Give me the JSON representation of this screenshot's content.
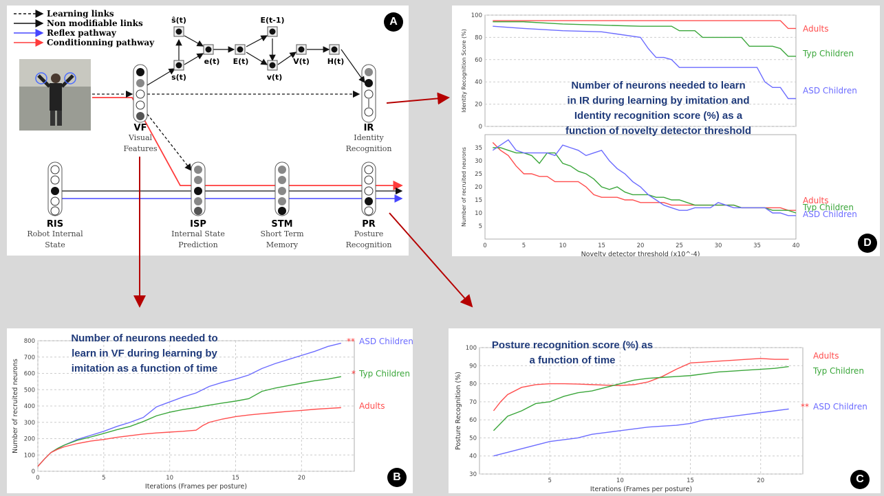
{
  "panels": {
    "a": {
      "badge": "A",
      "legend": [
        "Learning links",
        "Non modifiable links",
        "Reflex pathway",
        "Conditionning pathway"
      ],
      "nodes": [
        "ŝ(t)",
        "s(t)",
        "e(t)",
        "E(t)",
        "E(t-1)",
        "v(t)",
        "V(t)",
        "H(t)"
      ],
      "groups": [
        {
          "abbr": "VF",
          "name_lines": [
            "Visual",
            "Features"
          ]
        },
        {
          "abbr": "IR",
          "name_lines": [
            "Identity",
            "Recognition"
          ]
        },
        {
          "abbr": "RIS",
          "name_lines": [
            "Robot Internal",
            "State"
          ]
        },
        {
          "abbr": "ISP",
          "name_lines": [
            "Internal State",
            "Prediction"
          ]
        },
        {
          "abbr": "STM",
          "name_lines": [
            "Short Term",
            "Memory"
          ]
        },
        {
          "abbr": "PR",
          "name_lines": [
            "Posture",
            "Recognition"
          ]
        }
      ]
    },
    "b": {
      "badge": "B",
      "title_lines": [
        "Number of neurons needed to",
        "learn in VF during learning by",
        "imitation as a function of time"
      ]
    },
    "c": {
      "badge": "C",
      "title_lines": [
        "Posture recognition score (%) as",
        "a function of time"
      ]
    },
    "d": {
      "badge": "D",
      "title_lines": [
        "Number of neurons needed to learn",
        "in IR during learning by imitation and",
        "Identity recognition score (%)  as a",
        "function of novelty detector threshold"
      ]
    }
  },
  "chart_data": [
    {
      "id": "b",
      "type": "line",
      "xlabel": "Iterations (Frames per posture)",
      "ylabel": "Number of recruited neurons",
      "xlim": [
        0,
        24
      ],
      "ylim": [
        0,
        800
      ],
      "xticks": [
        0,
        5,
        10,
        15,
        20
      ],
      "yticks": [
        0,
        100,
        200,
        300,
        400,
        500,
        600,
        700,
        800
      ],
      "x": [
        0,
        0.5,
        1,
        1.5,
        2,
        3,
        4,
        5,
        6,
        7,
        8,
        9,
        10,
        11,
        12,
        12.5,
        13,
        14,
        15,
        16,
        17,
        18,
        19,
        20,
        21,
        22,
        23
      ],
      "series": [
        {
          "name": "ASD Children",
          "color": "#6b6bff",
          "star": "**",
          "values": [
            30,
            75,
            115,
            140,
            160,
            195,
            220,
            245,
            275,
            300,
            330,
            395,
            425,
            455,
            480,
            500,
            520,
            545,
            565,
            590,
            630,
            660,
            685,
            710,
            735,
            765,
            785
          ]
        },
        {
          "name": "Typ Children",
          "color": "#3aa63a",
          "star": "*",
          "values": [
            30,
            75,
            115,
            140,
            160,
            190,
            210,
            232,
            255,
            275,
            305,
            340,
            362,
            378,
            390,
            398,
            405,
            418,
            430,
            445,
            490,
            510,
            525,
            540,
            555,
            565,
            580
          ]
        },
        {
          "name": "Adults",
          "color": "#ff4d4d",
          "star": "",
          "values": [
            30,
            75,
            115,
            135,
            150,
            170,
            185,
            195,
            208,
            218,
            228,
            235,
            240,
            245,
            252,
            280,
            300,
            320,
            335,
            345,
            353,
            360,
            367,
            373,
            380,
            385,
            390
          ]
        }
      ]
    },
    {
      "id": "c",
      "type": "line",
      "xlabel": "Iterations (Frames per posture)",
      "ylabel": "Posture Recognition (%)",
      "xlim": [
        0,
        23
      ],
      "ylim": [
        30,
        100
      ],
      "xticks": [
        5,
        10,
        15,
        20
      ],
      "yticks": [
        30,
        40,
        50,
        60,
        70,
        80,
        90,
        100
      ],
      "x": [
        1,
        1.5,
        2,
        3,
        4,
        5,
        6,
        7,
        8,
        9,
        10,
        11,
        12,
        13,
        14,
        15,
        16,
        17,
        18,
        19,
        20,
        21,
        22
      ],
      "series": [
        {
          "name": "Adults",
          "color": "#ff4d4d",
          "star": "",
          "values": [
            65,
            70,
            74,
            78,
            79.5,
            80,
            80,
            79.8,
            79.5,
            79.2,
            79,
            79.5,
            81,
            84,
            88,
            91.5,
            92,
            92.5,
            93,
            93.5,
            94,
            93.5,
            93.5
          ]
        },
        {
          "name": "Typ Children",
          "color": "#3aa63a",
          "star": "",
          "values": [
            54,
            58,
            62,
            65,
            69,
            70,
            73,
            75,
            76,
            78,
            80,
            82,
            83,
            83.5,
            84,
            84.5,
            85.5,
            86.5,
            87,
            87.5,
            88,
            88.5,
            89.5
          ]
        },
        {
          "name": "ASD Children",
          "color": "#6b6bff",
          "star": "**",
          "values": [
            40,
            41,
            42,
            44,
            46,
            48,
            49,
            50,
            52,
            53,
            54,
            55,
            56,
            56.5,
            57,
            58,
            60,
            61,
            62,
            63,
            64,
            65,
            66
          ]
        }
      ]
    },
    {
      "id": "d-top",
      "type": "line",
      "ylabel": "Identity Recognition Score (%)",
      "xlim": [
        0,
        40
      ],
      "ylim": [
        0,
        100
      ],
      "yticks": [
        0,
        20,
        40,
        60,
        80,
        100
      ],
      "x": [
        1,
        5,
        10,
        15,
        20,
        21,
        22,
        23,
        24,
        25,
        26,
        27,
        28,
        30,
        31,
        32,
        33,
        34,
        35,
        36,
        37,
        38,
        39,
        40
      ],
      "series": [
        {
          "name": "Adults",
          "color": "#ff4d4d",
          "values": [
            95,
            95,
            95,
            95,
            95,
            95,
            95,
            95,
            95,
            95,
            95,
            95,
            95,
            95,
            95,
            95,
            95,
            95,
            95,
            95,
            95,
            95,
            88,
            88
          ]
        },
        {
          "name": "Typ Children",
          "color": "#3aa63a",
          "values": [
            94,
            94,
            92,
            91,
            90,
            90,
            90,
            90,
            90,
            86,
            86,
            86,
            80,
            80,
            80,
            80,
            80,
            72,
            72,
            72,
            72,
            70,
            63,
            63
          ]
        },
        {
          "name": "ASD Children",
          "color": "#6b6bff",
          "values": [
            90,
            88,
            86,
            85,
            80,
            70,
            62,
            62,
            60,
            53,
            53,
            53,
            53,
            53,
            53,
            53,
            53,
            53,
            53,
            40,
            35,
            35,
            25,
            25
          ]
        }
      ]
    },
    {
      "id": "d-bottom",
      "type": "line",
      "xlabel": "Novelty detector threshold (x10^-4)",
      "ylabel": "Number of recruited neurons",
      "xlim": [
        0,
        40
      ],
      "ylim": [
        0,
        40
      ],
      "xticks": [
        0,
        5,
        10,
        15,
        20,
        25,
        30,
        35,
        40
      ],
      "yticks": [
        5,
        10,
        15,
        20,
        25,
        30,
        35
      ],
      "x": [
        1,
        2,
        3,
        4,
        5,
        6,
        7,
        8,
        9,
        10,
        11,
        12,
        13,
        14,
        15,
        16,
        17,
        18,
        19,
        20,
        21,
        22,
        23,
        24,
        25,
        26,
        27,
        28,
        29,
        30,
        31,
        32,
        33,
        34,
        35,
        36,
        37,
        38,
        39,
        40
      ],
      "series": [
        {
          "name": "Adults",
          "color": "#ff4d4d",
          "values": [
            37,
            34,
            32,
            28,
            25,
            25,
            24,
            24,
            22,
            22,
            22,
            22,
            20,
            17,
            16,
            16,
            16,
            15,
            15,
            14,
            14,
            14,
            14,
            13,
            13,
            13,
            13,
            13,
            13,
            13,
            13,
            13,
            12,
            12,
            12,
            12,
            12,
            12,
            11,
            11
          ]
        },
        {
          "name": "Typ Children",
          "color": "#3aa63a",
          "values": [
            35,
            35,
            34,
            33,
            33,
            32,
            29,
            33,
            33,
            29,
            28,
            26,
            25,
            23,
            20,
            19,
            20,
            18,
            17,
            17,
            17,
            16,
            16,
            15,
            15,
            14,
            13,
            13,
            13,
            13,
            13,
            13,
            12,
            12,
            12,
            12,
            11,
            11,
            11,
            10
          ]
        },
        {
          "name": "ASD Children",
          "color": "#6b6bff",
          "values": [
            34,
            36,
            38,
            34,
            33,
            33,
            33,
            33,
            32,
            36,
            35,
            34,
            32,
            33,
            34,
            30,
            27,
            25,
            22,
            20,
            17,
            15,
            13,
            12,
            11,
            11,
            12,
            12,
            12,
            14,
            13,
            12,
            12,
            12,
            12,
            12,
            10,
            10,
            9,
            9
          ]
        }
      ]
    }
  ]
}
